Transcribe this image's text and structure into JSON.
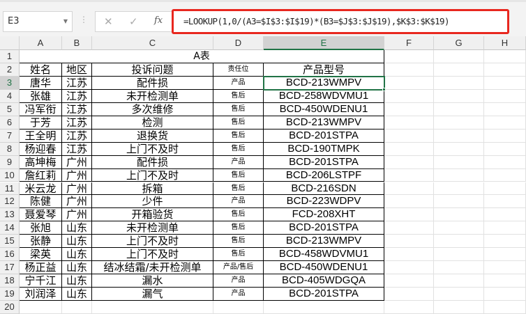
{
  "name_box": "E3",
  "formula_bar": {
    "cancel_icon": "✕",
    "enter_icon": "✓",
    "fx_label": "fx",
    "formula": "=LOOKUP(1,0/(A3=$I$3:$I$19)*(B3=$J$3:$J$19),$K$3:$K$19)"
  },
  "columns": [
    "A",
    "B",
    "C",
    "D",
    "E",
    "F",
    "G",
    "H"
  ],
  "title": "A表",
  "headers": [
    "姓名",
    "地区",
    "投诉问题",
    "责任位",
    "产品型号"
  ],
  "rows": [
    [
      "唐华",
      "江苏",
      "配件损",
      "产品",
      "BCD-213WMPV"
    ],
    [
      "张雄",
      "江苏",
      "未开检测单",
      "售后",
      "BCD-258WDVMU1"
    ],
    [
      "冯军衔",
      "江苏",
      "多次维修",
      "售后",
      "BCD-450WDENU1"
    ],
    [
      "于芳",
      "江苏",
      "检测",
      "售后",
      "BCD-213WMPV"
    ],
    [
      "王全明",
      "江苏",
      "退换货",
      "售后",
      "BCD-201STPA"
    ],
    [
      "杨迎春",
      "江苏",
      "上门不及时",
      "售后",
      "BCD-190TMPK"
    ],
    [
      "高坤梅",
      "广州",
      "配件损",
      "产品",
      "BCD-201STPA"
    ],
    [
      "詹红莉",
      "广州",
      "上门不及时",
      "售后",
      "BCD-206LSTPF"
    ],
    [
      "米云龙",
      "广州",
      "拆箱",
      "售后",
      "BCD-216SDN"
    ],
    [
      "陈健",
      "广州",
      "少件",
      "产品",
      "BCD-223WDPV"
    ],
    [
      "聂爱琴",
      "广州",
      "开箱验货",
      "售后",
      "FCD-208XHT"
    ],
    [
      "张旭",
      "山东",
      "未开检测单",
      "售后",
      "BCD-201STPA"
    ],
    [
      "张静",
      "山东",
      "上门不及时",
      "售后",
      "BCD-213WMPV"
    ],
    [
      "梁英",
      "山东",
      "上门不及时",
      "售后",
      "BCD-458WDVMU1"
    ],
    [
      "杨正益",
      "山东",
      "结冰结霜/未开检测单",
      "产品/售后",
      "BCD-450WDENU1"
    ],
    [
      "宁千江",
      "山东",
      "漏水",
      "产品",
      "BCD-405WDGQA"
    ],
    [
      "刘润泽",
      "山东",
      "漏气",
      "产品",
      "BCD-201STPA"
    ]
  ]
}
